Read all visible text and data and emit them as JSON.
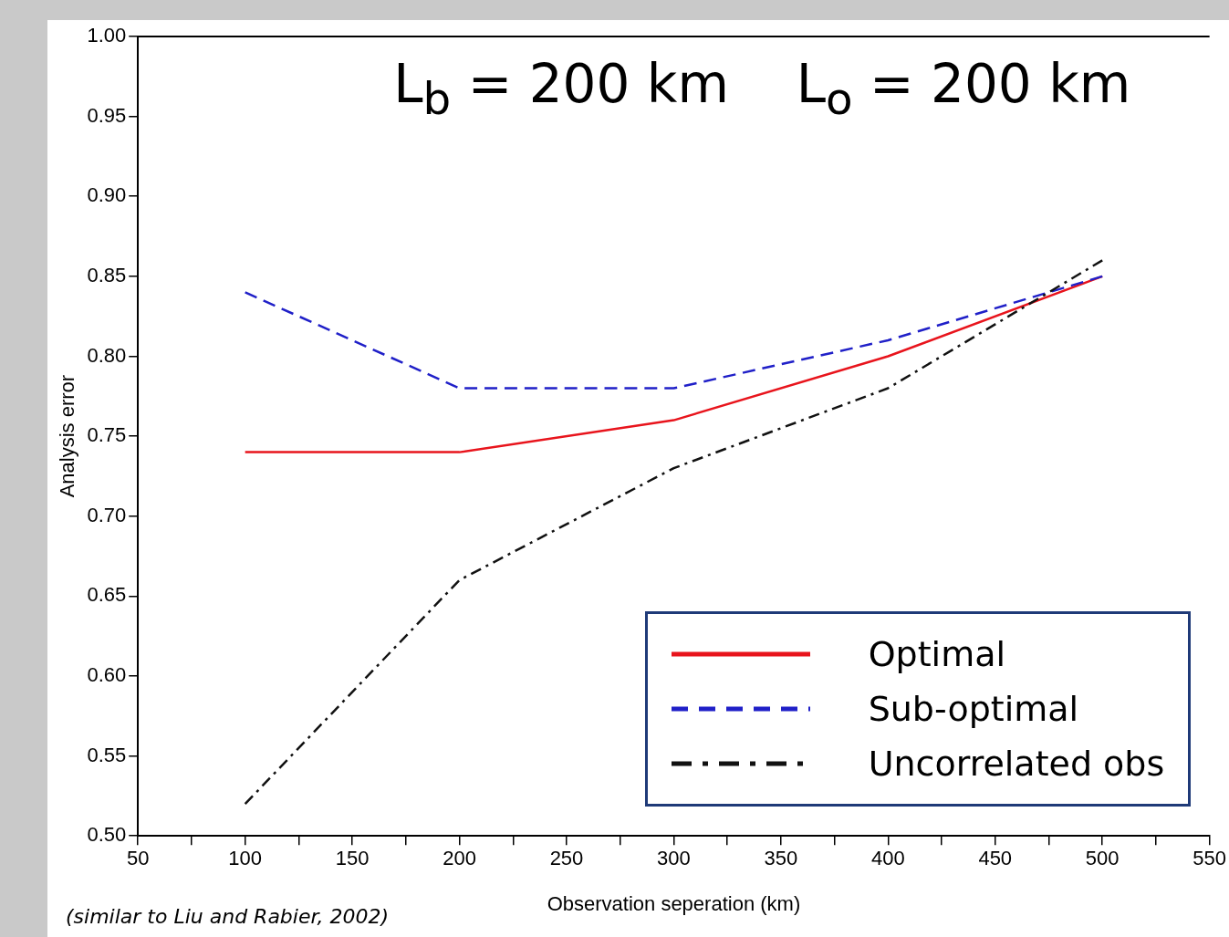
{
  "chart_data": {
    "type": "line",
    "title": "L$_{b}$ = 200 km    L$_{o}$ = 200 km",
    "xlabel": "Observation seperation (km)",
    "ylabel": "Analysis error",
    "x": [
      100,
      200,
      300,
      400,
      500
    ],
    "series": [
      {
        "name": "Optimal",
        "color": "#e8141c",
        "values": [
          0.74,
          0.74,
          0.76,
          0.8,
          0.85
        ],
        "line_style": "solid"
      },
      {
        "name": "Sub-optimal",
        "color": "#2020c8",
        "values": [
          0.84,
          0.78,
          0.78,
          0.81,
          0.85
        ],
        "line_style": "dashed"
      },
      {
        "name": "Uncorrelated obs",
        "color": "#111111",
        "values": [
          0.52,
          0.66,
          0.73,
          0.78,
          0.86
        ],
        "line_style": "dashdot"
      }
    ],
    "xlim": [
      50,
      550
    ],
    "xticks": [
      50,
      {
        "value": 75,
        "label": null
      },
      100,
      {
        "value": 125,
        "label": null
      },
      150,
      {
        "value": 175,
        "label": null
      },
      200,
      {
        "value": 225,
        "label": null
      },
      250,
      {
        "value": 275,
        "label": null
      },
      300,
      {
        "value": 325,
        "label": null
      },
      350,
      {
        "value": 375,
        "label": null
      },
      400,
      {
        "value": 425,
        "label": null
      },
      450,
      {
        "value": 475,
        "label": null
      },
      500,
      {
        "value": 525,
        "label": null
      },
      550
    ],
    "ylim": [
      0.5,
      1.0
    ],
    "yticks": [
      {
        "value": 0.5,
        "label": "0.50"
      },
      {
        "value": 0.55,
        "label": "0.55"
      },
      {
        "value": 0.6,
        "label": "0.60"
      },
      {
        "value": 0.65,
        "label": "0.65"
      },
      {
        "value": 0.7,
        "label": "0.70"
      },
      {
        "value": 0.75,
        "label": "0.75"
      },
      {
        "value": 0.8,
        "label": "0.80"
      },
      {
        "value": 0.85,
        "label": "0.85"
      },
      {
        "value": 0.9,
        "label": "0.90"
      },
      {
        "value": 0.95,
        "label": "0.95"
      },
      {
        "value": 1.0,
        "label": "1.00"
      }
    ],
    "grid": false,
    "legend": "bottom right",
    "marker": "none",
    "annotations": [
      "(similar to Liu and Rabier, 2002)"
    ]
  }
}
